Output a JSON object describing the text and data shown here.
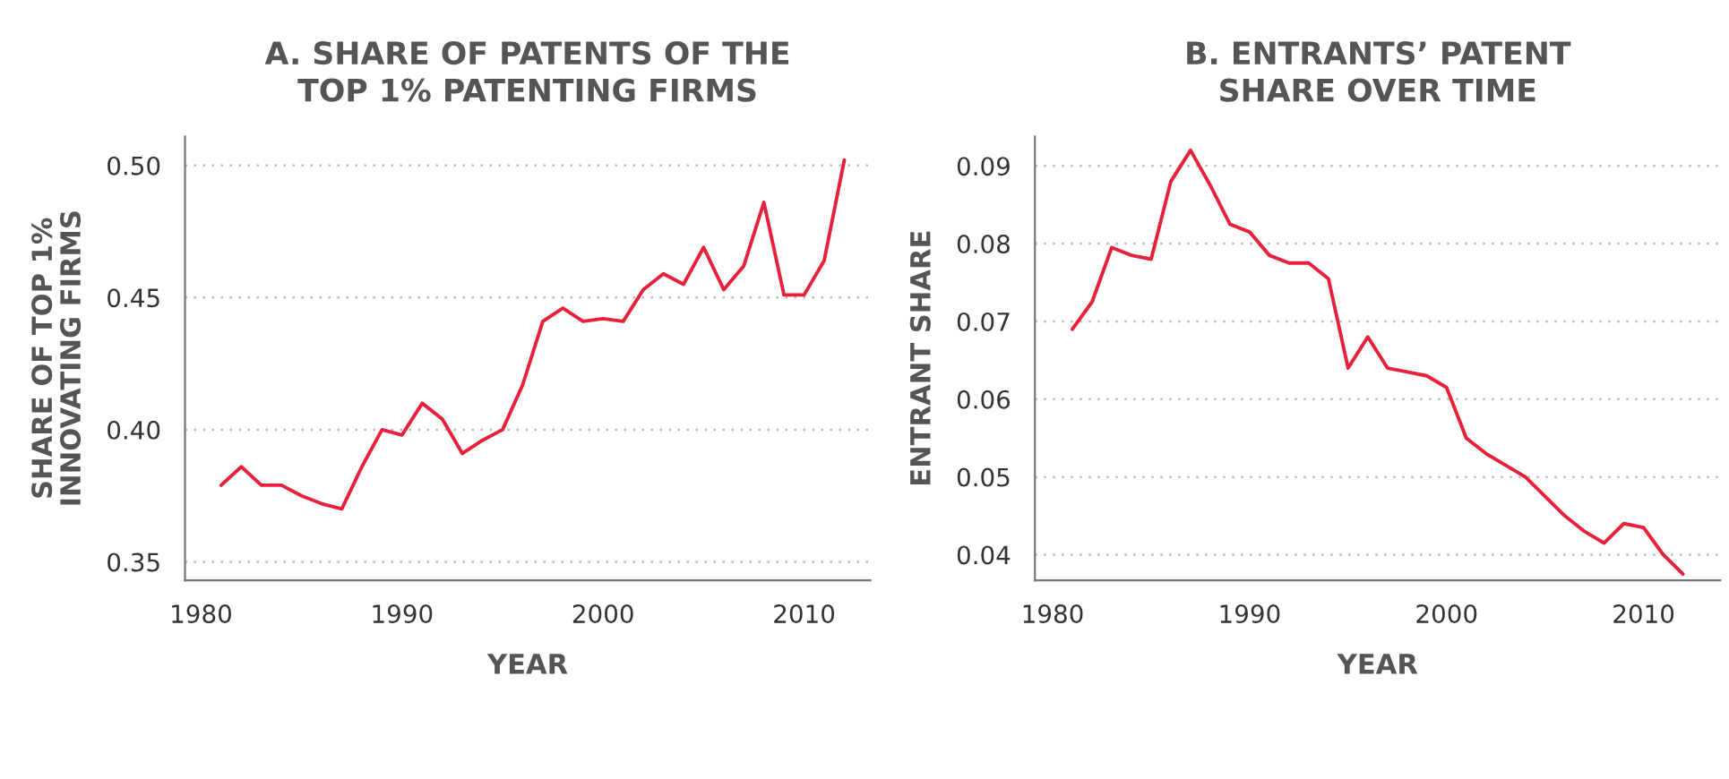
{
  "chart_data": [
    {
      "type": "line",
      "title": "A. SHARE OF PATENTS OF THE\nTOP 1% PATENTING FIRMS",
      "xlabel": "YEAR",
      "ylabel": "SHARE OF TOP 1%\nINNOVATING FIRMS",
      "x": [
        1981,
        1982,
        1983,
        1984,
        1985,
        1986,
        1987,
        1988,
        1989,
        1990,
        1991,
        1992,
        1993,
        1994,
        1995,
        1996,
        1997,
        1998,
        1999,
        2000,
        2001,
        2002,
        2003,
        2004,
        2005,
        2006,
        2007,
        2008,
        2009,
        2010,
        2011,
        2012
      ],
      "series": [
        {
          "color": "#e8203a",
          "values": [
            0.379,
            0.386,
            0.379,
            0.379,
            0.375,
            0.372,
            0.37,
            0.386,
            0.4,
            0.398,
            0.41,
            0.404,
            0.391,
            0.396,
            0.4,
            0.417,
            0.441,
            0.446,
            0.441,
            0.442,
            0.441,
            0.453,
            0.459,
            0.455,
            0.469,
            0.453,
            0.462,
            0.486,
            0.451,
            0.451,
            0.464,
            0.502
          ]
        }
      ],
      "xlim": [
        1979.2,
        2013.3
      ],
      "xticks": [
        1980,
        1990,
        2000,
        2010
      ],
      "ylim": [
        0.343,
        0.511
      ],
      "yticks": [
        {
          "value": 0.35,
          "label": "0.35"
        },
        {
          "value": 0.4,
          "label": "0.40"
        },
        {
          "value": 0.45,
          "label": "0.45"
        },
        {
          "value": 0.5,
          "label": "0.50"
        }
      ],
      "grid": "y",
      "legend": false,
      "marker": "none",
      "line_style": "solid"
    },
    {
      "type": "line",
      "title": "B. ENTRANTS’ PATENT\nSHARE OVER TIME",
      "xlabel": "YEAR",
      "ylabel": "ENTRANT SHARE",
      "x": [
        1981,
        1982,
        1983,
        1984,
        1985,
        1986,
        1987,
        1988,
        1989,
        1990,
        1991,
        1992,
        1993,
        1994,
        1995,
        1996,
        1997,
        1998,
        1999,
        2000,
        2001,
        2002,
        2003,
        2004,
        2005,
        2006,
        2007,
        2008,
        2009,
        2010,
        2011,
        2012
      ],
      "series": [
        {
          "color": "#e8203a",
          "values": [
            0.069,
            0.0725,
            0.0795,
            0.0785,
            0.078,
            0.088,
            0.092,
            0.0875,
            0.0825,
            0.0815,
            0.0785,
            0.0775,
            0.0775,
            0.0755,
            0.064,
            0.068,
            0.064,
            0.0635,
            0.063,
            0.0615,
            0.055,
            0.053,
            0.0515,
            0.05,
            0.0475,
            0.045,
            0.043,
            0.0415,
            0.044,
            0.0435,
            0.04,
            0.0375
          ]
        }
      ],
      "xlim": [
        1979.1,
        2013.9
      ],
      "xticks": [
        1980,
        1990,
        2000,
        2010
      ],
      "ylim": [
        0.0367,
        0.0938
      ],
      "yticks": [
        {
          "value": 0.04,
          "label": "0.04"
        },
        {
          "value": 0.05,
          "label": "0.05"
        },
        {
          "value": 0.06,
          "label": "0.06"
        },
        {
          "value": 0.07,
          "label": "0.07"
        },
        {
          "value": 0.08,
          "label": "0.08"
        },
        {
          "value": 0.09,
          "label": "0.09"
        }
      ],
      "grid": "y",
      "legend": false,
      "marker": "none",
      "line_style": "solid"
    }
  ]
}
